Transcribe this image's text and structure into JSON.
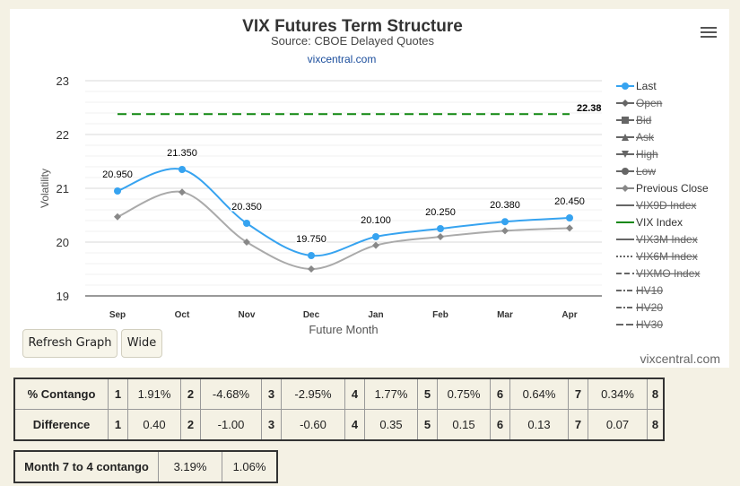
{
  "chart": {
    "title": "VIX Futures Term Structure",
    "subtitle": "Source: CBOE Delayed Quotes",
    "source_link": "vixcentral.com",
    "credits": "vixcentral.com",
    "buttons": {
      "refresh": "Refresh Graph",
      "wide": "Wide"
    }
  },
  "chart_data": {
    "type": "line",
    "title": "VIX Futures Term Structure",
    "subtitle": "Source: CBOE Delayed Quotes",
    "xlabel": "Future Month",
    "ylabel": "Volatility",
    "categories": [
      "Sep",
      "Oct",
      "Nov",
      "Dec",
      "Jan",
      "Feb",
      "Mar",
      "Apr"
    ],
    "ylim": [
      19,
      23
    ],
    "yticks": [
      19,
      20,
      21,
      22,
      23
    ],
    "grid": true,
    "legend_position": "right",
    "series": [
      {
        "name": "Last",
        "values": [
          20.95,
          21.35,
          20.35,
          19.75,
          20.1,
          20.25,
          20.38,
          20.45
        ],
        "labels": [
          "20.950",
          "21.350",
          "20.350",
          "19.750",
          "20.100",
          "20.250",
          "20.380",
          "20.450"
        ],
        "color": "#36a3f0",
        "marker": "circle"
      },
      {
        "name": "Previous Close",
        "values": [
          20.47,
          20.93,
          20.0,
          19.5,
          19.94,
          20.1,
          20.21,
          20.26
        ],
        "color": "#aaaaaa",
        "marker": "diamond"
      },
      {
        "name": "VIX Index",
        "constant": 22.38,
        "label": "22.38",
        "color": "#118811",
        "dash": "dashed"
      }
    ],
    "legend": [
      {
        "name": "Last",
        "color": "#36a3f0",
        "symbol": "circle",
        "hidden": false
      },
      {
        "name": "Open",
        "color": "#555555",
        "symbol": "diamond",
        "hidden": true
      },
      {
        "name": "Bid",
        "color": "#555555",
        "symbol": "square",
        "hidden": true
      },
      {
        "name": "Ask",
        "color": "#555555",
        "symbol": "triangle",
        "hidden": true
      },
      {
        "name": "High",
        "color": "#555555",
        "symbol": "triangle-down",
        "hidden": true
      },
      {
        "name": "Low",
        "color": "#555555",
        "symbol": "circle",
        "hidden": true
      },
      {
        "name": "Previous Close",
        "color": "#888888",
        "symbol": "diamond",
        "hidden": false
      },
      {
        "name": "VIX9D Index",
        "color": "#555555",
        "symbol": "line",
        "hidden": true
      },
      {
        "name": "VIX Index",
        "color": "#118811",
        "symbol": "line",
        "hidden": false
      },
      {
        "name": "VIX3M Index",
        "color": "#555555",
        "symbol": "line",
        "hidden": true
      },
      {
        "name": "VIX6M Index",
        "color": "#555555",
        "symbol": "dotted",
        "hidden": true
      },
      {
        "name": "VIXMO Index",
        "color": "#555555",
        "symbol": "dashed",
        "hidden": true
      },
      {
        "name": "HV10",
        "color": "#555555",
        "symbol": "dashdot",
        "hidden": true
      },
      {
        "name": "HV20",
        "color": "#555555",
        "symbol": "dashdot",
        "hidden": true
      },
      {
        "name": "HV30",
        "color": "#555555",
        "symbol": "longdash",
        "hidden": true
      }
    ]
  },
  "contango_table": {
    "rows": [
      {
        "label": "% Contango",
        "cells": [
          "1",
          "1.91%",
          "2",
          "-4.68%",
          "3",
          "-2.95%",
          "4",
          "1.77%",
          "5",
          "0.75%",
          "6",
          "0.64%",
          "7",
          "0.34%",
          "8"
        ]
      },
      {
        "label": "Difference",
        "cells": [
          "1",
          "0.40",
          "2",
          "-1.00",
          "3",
          "-0.60",
          "4",
          "0.35",
          "5",
          "0.15",
          "6",
          "0.13",
          "7",
          "0.07",
          "8"
        ]
      }
    ]
  },
  "spread_table": {
    "label": "Month 7 to 4 contango",
    "value1": "3.19%",
    "value2": "1.06%"
  }
}
